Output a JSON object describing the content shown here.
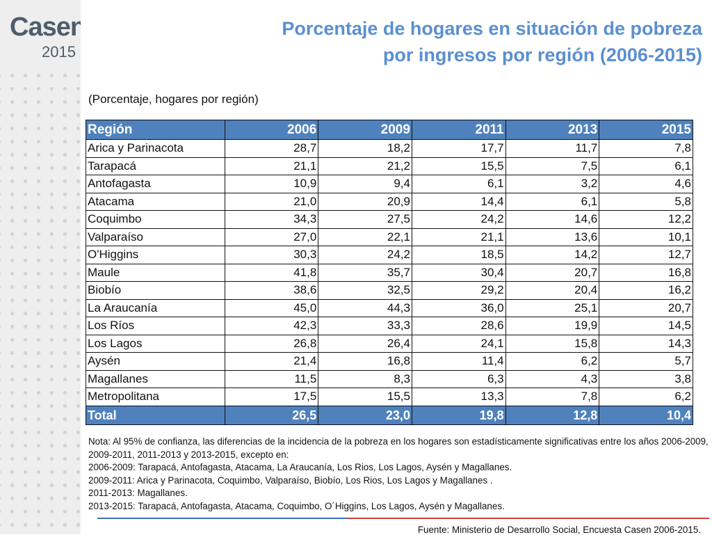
{
  "logo": {
    "brand": "Casen",
    "year": "2015"
  },
  "title": {
    "line1": "Porcentaje de hogares en situación de pobreza",
    "line2": "por ingresos por región (2006-2015)"
  },
  "subtitle": "(Porcentaje, hogares por región)",
  "table": {
    "headers": [
      "Región",
      "2006",
      "2009",
      "2011",
      "2013",
      "2015"
    ],
    "rows": [
      [
        "Arica y Parinacota",
        "28,7",
        "18,2",
        "17,7",
        "11,7",
        "7,8"
      ],
      [
        "Tarapacá",
        "21,1",
        "21,2",
        "15,5",
        "7,5",
        "6,1"
      ],
      [
        "Antofagasta",
        "10,9",
        "9,4",
        "6,1",
        "3,2",
        "4,6"
      ],
      [
        "Atacama",
        "21,0",
        "20,9",
        "14,4",
        "6,1",
        "5,8"
      ],
      [
        "Coquimbo",
        "34,3",
        "27,5",
        "24,2",
        "14,6",
        "12,2"
      ],
      [
        "Valparaíso",
        "27,0",
        "22,1",
        "21,1",
        "13,6",
        "10,1"
      ],
      [
        "O'Higgins",
        "30,3",
        "24,2",
        "18,5",
        "14,2",
        "12,7"
      ],
      [
        "Maule",
        "41,8",
        "35,7",
        "30,4",
        "20,7",
        "16,8"
      ],
      [
        "Biobío",
        "38,6",
        "32,5",
        "29,2",
        "20,4",
        "16,2"
      ],
      [
        "La Araucanía",
        "45,0",
        "44,3",
        "36,0",
        "25,1",
        "20,7"
      ],
      [
        "Los Ríos",
        "42,3",
        "33,3",
        "28,6",
        "19,9",
        "14,5"
      ],
      [
        "Los Lagos",
        "26,8",
        "26,4",
        "24,1",
        "15,8",
        "14,3"
      ],
      [
        "Aysén",
        "21,4",
        "16,8",
        "11,4",
        "6,2",
        "5,7"
      ],
      [
        "Magallanes",
        "11,5",
        "8,3",
        "6,3",
        "4,3",
        "3,8"
      ],
      [
        "Metropolitana",
        "17,5",
        "15,5",
        "13,3",
        "7,8",
        "6,2"
      ]
    ],
    "total": [
      "Total",
      "26,5",
      "23,0",
      "19,8",
      "12,8",
      "10,4"
    ]
  },
  "notes": [
    "Nota: Al 95% de confianza, las diferencias de la incidencia de la pobreza en los hogares son estadísticamente significativas entre los años 2006-2009,",
    "2009-2011, 2011-2013 y 2013-2015, excepto en:",
    "2006-2009: Tarapacá, Antofagasta, Atacama, La Araucanía, Los Rios, Los Lagos, Aysén y Magallanes.",
    "2009-2011: Arica y Parinacota, Coquimbo, Valparaíso, Biobío, Los Rios, Los Lagos y Magallanes .",
    "2011-2013: Magallanes.",
    "2013-2015: Tarapacá, Antofagasta, Atacama, Coquimbo, O´Higgins, Los Lagos, Aysén y Magallanes."
  ],
  "source": "Fuente: Ministerio de Desarrollo Social, Encuesta Casen 2006-2015.",
  "colors": {
    "header_bg": "#4f81bd",
    "title": "#5b8fd0",
    "footer_blue": "#3f6fb6",
    "footer_red": "#c84040"
  }
}
